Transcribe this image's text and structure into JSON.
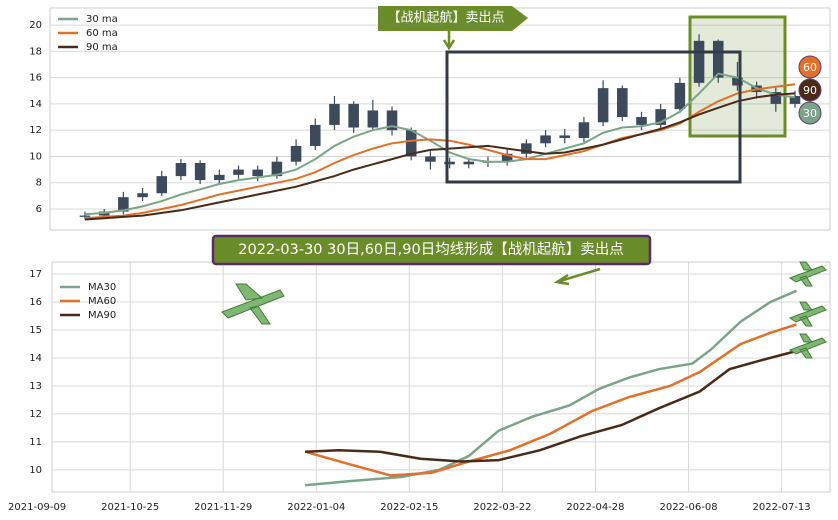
{
  "chart_data": [
    {
      "type": "candlestick",
      "ylim": [
        4.4,
        21.3
      ],
      "yticks": [
        6,
        8,
        10,
        12,
        14,
        16,
        18,
        20
      ],
      "grid": true,
      "legend": "upper left",
      "candle_color": "#3d4a5c",
      "open": [
        5.4,
        5.5,
        5.8,
        6.9,
        7.2,
        8.5,
        9.5,
        8.2,
        8.6,
        9.0,
        8.5,
        9.6,
        10.8,
        12.4,
        14.0,
        12.2,
        13.5,
        12.0,
        10.0,
        9.6,
        9.4,
        9.6,
        9.6,
        10.2,
        11.0,
        11.6,
        11.4,
        12.6,
        15.2,
        13.0,
        12.4,
        13.6,
        15.6,
        18.8,
        16.0,
        15.4,
        14.9,
        14.0
      ],
      "high": [
        5.8,
        6.0,
        7.3,
        7.6,
        8.9,
        9.8,
        9.7,
        9.0,
        9.3,
        9.3,
        10.0,
        11.3,
        12.9,
        14.6,
        14.2,
        14.3,
        13.8,
        12.2,
        10.4,
        9.9,
        9.9,
        10.0,
        10.6,
        11.3,
        12.0,
        12.1,
        13.0,
        15.8,
        15.4,
        13.4,
        14.0,
        16.0,
        19.3,
        18.9,
        17.2,
        15.7,
        15.3,
        15.0
      ],
      "low": [
        5.2,
        5.3,
        5.6,
        6.6,
        7.0,
        8.2,
        7.9,
        7.9,
        8.3,
        8.1,
        8.3,
        9.3,
        10.5,
        12.0,
        11.8,
        12.0,
        11.6,
        9.7,
        9.0,
        9.1,
        9.1,
        9.2,
        9.3,
        9.9,
        10.7,
        11.0,
        11.1,
        12.3,
        12.7,
        12.0,
        12.1,
        13.3,
        15.3,
        15.6,
        15.0,
        14.4,
        13.4,
        13.7
      ],
      "close": [
        5.5,
        5.8,
        6.9,
        7.2,
        8.5,
        9.5,
        8.2,
        8.6,
        9.0,
        8.5,
        9.6,
        10.8,
        12.4,
        14.0,
        12.2,
        13.5,
        12.0,
        10.0,
        9.6,
        9.4,
        9.6,
        9.6,
        10.2,
        11.0,
        11.6,
        11.4,
        12.6,
        15.2,
        13.0,
        12.4,
        13.6,
        15.6,
        18.8,
        16.0,
        15.4,
        14.9,
        14.0,
        14.6
      ],
      "series": [
        {
          "name": "30 ma",
          "color": "#7aa58a",
          "values": [
            5.6,
            5.7,
            5.9,
            6.2,
            6.6,
            7.1,
            7.5,
            7.9,
            8.2,
            8.4,
            8.6,
            9.0,
            9.8,
            10.8,
            11.5,
            12.0,
            12.3,
            12.0,
            11.2,
            10.3,
            9.8,
            9.6,
            9.6,
            9.8,
            10.2,
            10.6,
            11.0,
            11.8,
            12.2,
            12.3,
            12.6,
            13.4,
            14.8,
            16.3,
            16.0,
            15.2,
            14.7,
            14.5
          ]
        },
        {
          "name": "60 ma",
          "color": "#e0702a",
          "values": [
            5.3,
            5.4,
            5.5,
            5.7,
            6.0,
            6.3,
            6.7,
            7.1,
            7.4,
            7.7,
            8.0,
            8.3,
            8.8,
            9.5,
            10.1,
            10.6,
            11.0,
            11.2,
            11.3,
            11.2,
            10.9,
            10.5,
            10.1,
            9.8,
            9.8,
            10.1,
            10.4,
            10.9,
            11.4,
            11.7,
            12.0,
            12.5,
            13.4,
            14.2,
            14.8,
            15.1,
            15.3,
            15.5
          ]
        },
        {
          "name": "90 ma",
          "color": "#4a2a18",
          "values": [
            5.2,
            5.3,
            5.4,
            5.5,
            5.7,
            5.9,
            6.2,
            6.5,
            6.8,
            7.1,
            7.4,
            7.7,
            8.1,
            8.5,
            9.0,
            9.4,
            9.8,
            10.2,
            10.5,
            10.6,
            10.7,
            10.8,
            10.6,
            10.4,
            10.2,
            10.3,
            10.6,
            10.9,
            11.3,
            11.7,
            12.1,
            12.6,
            13.2,
            13.7,
            14.2,
            14.5,
            14.7,
            14.8
          ]
        }
      ],
      "annotation": "【战机起航】卖出点",
      "end_labels": [
        "60",
        "90",
        "30"
      ]
    },
    {
      "type": "line",
      "xlim": [
        4,
        213
      ],
      "ylim": [
        9.21,
        17.43
      ],
      "xticks": [
        {
          "value": 0,
          "label": "2021-09-09"
        },
        {
          "value": 25,
          "label": "2021-10-25"
        },
        {
          "value": 50,
          "label": "2021-11-29"
        },
        {
          "value": 75,
          "label": "2022-01-04"
        },
        {
          "value": 100,
          "label": "2022-02-15"
        },
        {
          "value": 125,
          "label": "2022-03-22"
        },
        {
          "value": 150,
          "label": "2022-04-28"
        },
        {
          "value": 175,
          "label": "2022-06-08"
        },
        {
          "value": 200,
          "label": "2022-07-13"
        }
      ],
      "yticks": [
        10,
        11,
        12,
        13,
        14,
        15,
        16,
        17
      ],
      "grid": true,
      "legend": "upper left",
      "series": [
        {
          "name": "MA30",
          "color": "#7aa58a",
          "x": [
            72,
            84,
            98,
            108,
            116,
            124,
            133,
            143,
            151,
            159,
            167,
            176,
            181,
            189,
            197,
            204
          ],
          "values": [
            9.45,
            9.6,
            9.75,
            10.0,
            10.5,
            11.4,
            11.9,
            12.3,
            12.9,
            13.3,
            13.6,
            13.8,
            14.3,
            15.3,
            16.0,
            16.4
          ]
        },
        {
          "name": "MA60",
          "color": "#e0702a",
          "x": [
            72,
            84,
            95,
            106,
            116,
            127,
            138,
            149,
            159,
            170,
            178,
            189,
            197,
            204
          ],
          "values": [
            10.65,
            10.2,
            9.8,
            9.9,
            10.3,
            10.7,
            11.3,
            12.1,
            12.6,
            13.0,
            13.5,
            14.5,
            14.9,
            15.2
          ]
        },
        {
          "name": "MA90",
          "color": "#4a2a18",
          "x": [
            72,
            81,
            92,
            103,
            114,
            124,
            135,
            146,
            157,
            167,
            178,
            186,
            194,
            204
          ],
          "values": [
            10.65,
            10.7,
            10.65,
            10.4,
            10.3,
            10.35,
            10.7,
            11.2,
            11.6,
            12.2,
            12.8,
            13.6,
            13.9,
            14.25
          ]
        }
      ],
      "annotation": "2022-03-30 30日,60日,90日均线形成【战机起航】卖出点"
    }
  ]
}
